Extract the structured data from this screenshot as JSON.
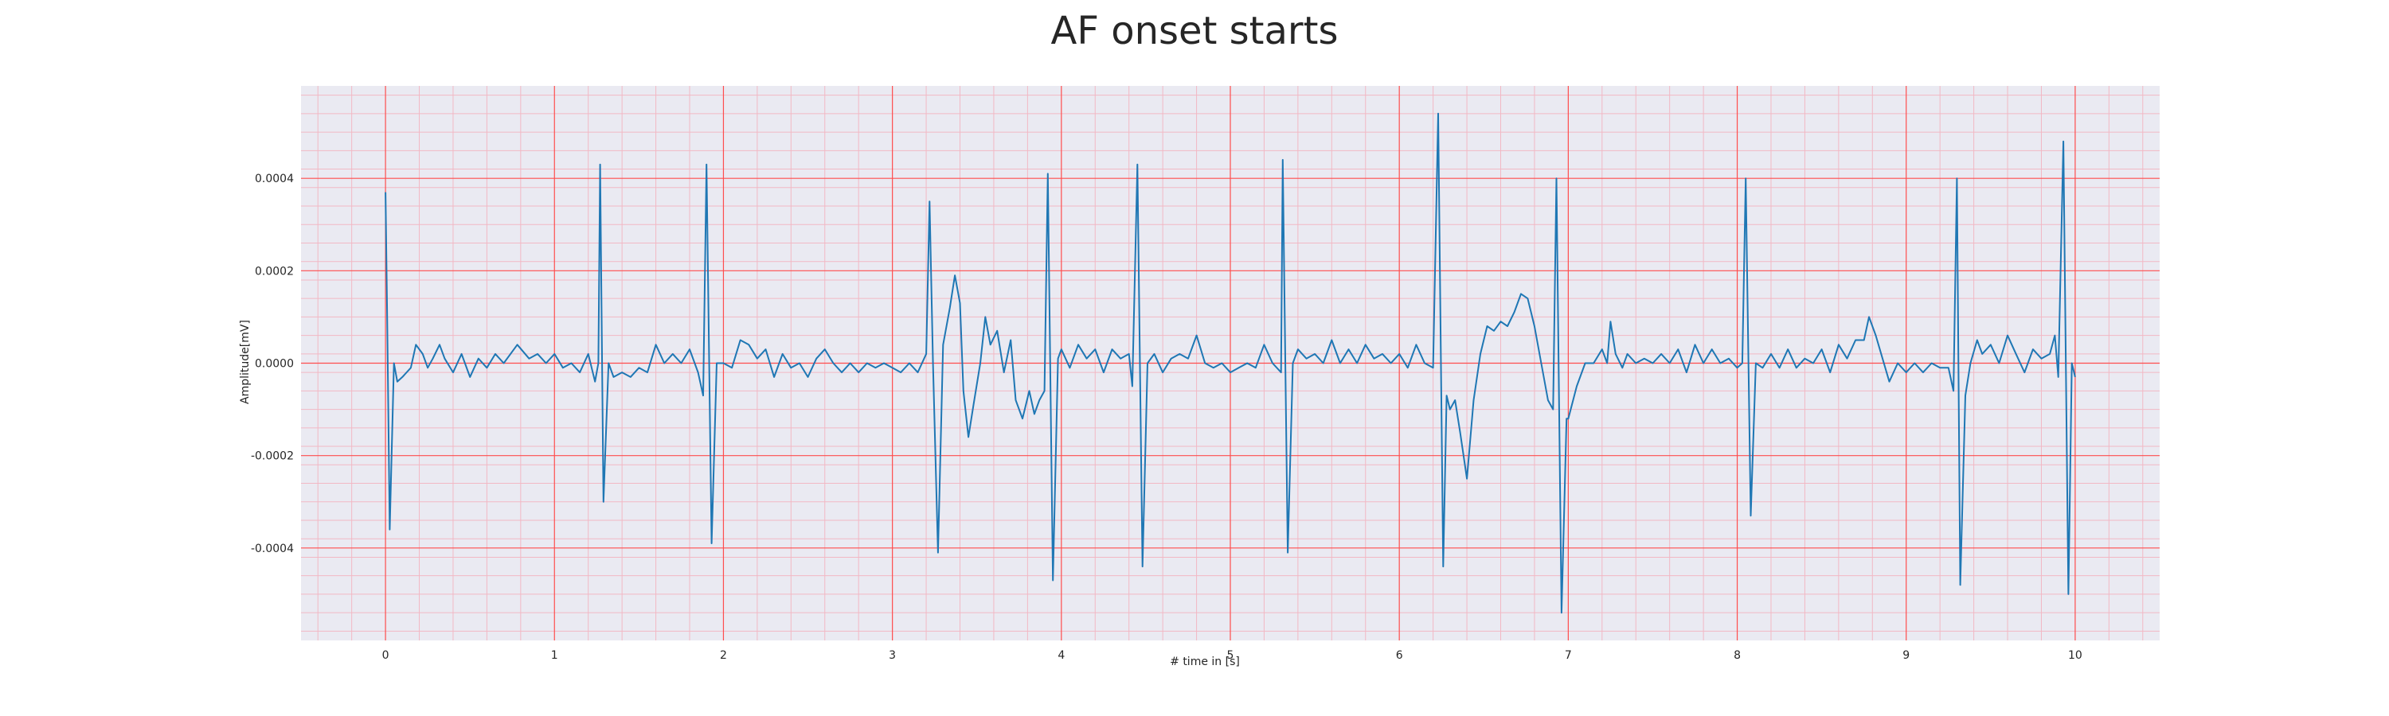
{
  "chart_data": {
    "type": "line",
    "title": "AF onset starts",
    "xlabel": "# time in [s]",
    "ylabel": "Amplitude[mV]",
    "xlim": [
      -0.5,
      10.5
    ],
    "ylim": [
      -0.0006,
      0.0006
    ],
    "x_ticks": [
      0,
      1,
      2,
      3,
      4,
      5,
      6,
      7,
      8,
      9,
      10
    ],
    "x_tick_labels": [
      "0",
      "1",
      "2",
      "3",
      "4",
      "5",
      "6",
      "7",
      "8",
      "9",
      "10"
    ],
    "y_ticks": [
      -0.0004,
      -0.0002,
      0.0,
      0.0002,
      0.0004
    ],
    "y_tick_labels": [
      "-0.0004",
      "-0.0002",
      "0.0000",
      "0.0002",
      "0.0004"
    ],
    "grid": true,
    "minor_grid": true,
    "colors": {
      "plot_background": "#eaeaf2",
      "major_grid": "#ff4d4d",
      "minor_grid": "#f2b8c4",
      "line": "#1f77b4"
    },
    "series": [
      {
        "values": [
          [
            0.0,
            0.00037
          ],
          [
            0.01,
            0.0001
          ],
          [
            0.025,
            -0.00036
          ],
          [
            0.05,
            0.0
          ],
          [
            0.07,
            -4e-05
          ],
          [
            0.1,
            -3e-05
          ],
          [
            0.15,
            -1e-05
          ],
          [
            0.18,
            4e-05
          ],
          [
            0.22,
            2e-05
          ],
          [
            0.25,
            -1e-05
          ],
          [
            0.28,
            1e-05
          ],
          [
            0.32,
            4e-05
          ],
          [
            0.35,
            1e-05
          ],
          [
            0.4,
            -2e-05
          ],
          [
            0.45,
            2e-05
          ],
          [
            0.5,
            -3e-05
          ],
          [
            0.55,
            1e-05
          ],
          [
            0.6,
            -1e-05
          ],
          [
            0.65,
            2e-05
          ],
          [
            0.7,
            0.0
          ],
          [
            0.78,
            4e-05
          ],
          [
            0.85,
            1e-05
          ],
          [
            0.9,
            2e-05
          ],
          [
            0.95,
            0.0
          ],
          [
            1.0,
            2e-05
          ],
          [
            1.05,
            -1e-05
          ],
          [
            1.1,
            0.0
          ],
          [
            1.15,
            -2e-05
          ],
          [
            1.2,
            2e-05
          ],
          [
            1.24,
            -4e-05
          ],
          [
            1.26,
            0.0
          ],
          [
            1.27,
            0.00043
          ],
          [
            1.29,
            -0.0003
          ],
          [
            1.32,
            0.0
          ],
          [
            1.35,
            -3e-05
          ],
          [
            1.4,
            -2e-05
          ],
          [
            1.45,
            -3e-05
          ],
          [
            1.5,
            -1e-05
          ],
          [
            1.55,
            -2e-05
          ],
          [
            1.6,
            4e-05
          ],
          [
            1.65,
            0.0
          ],
          [
            1.7,
            2e-05
          ],
          [
            1.75,
            0.0
          ],
          [
            1.8,
            3e-05
          ],
          [
            1.85,
            -2e-05
          ],
          [
            1.88,
            -7e-05
          ],
          [
            1.9,
            0.00043
          ],
          [
            1.93,
            -0.00039
          ],
          [
            1.96,
            0.0
          ],
          [
            2.0,
            0.0
          ],
          [
            2.05,
            -1e-05
          ],
          [
            2.1,
            5e-05
          ],
          [
            2.15,
            4e-05
          ],
          [
            2.2,
            1e-05
          ],
          [
            2.25,
            3e-05
          ],
          [
            2.3,
            -3e-05
          ],
          [
            2.35,
            2e-05
          ],
          [
            2.4,
            -1e-05
          ],
          [
            2.45,
            0.0
          ],
          [
            2.5,
            -3e-05
          ],
          [
            2.55,
            1e-05
          ],
          [
            2.6,
            3e-05
          ],
          [
            2.65,
            0.0
          ],
          [
            2.7,
            -2e-05
          ],
          [
            2.75,
            0.0
          ],
          [
            2.8,
            -2e-05
          ],
          [
            2.85,
            0.0
          ],
          [
            2.9,
            -1e-05
          ],
          [
            2.95,
            0.0
          ],
          [
            3.0,
            -1e-05
          ],
          [
            3.05,
            -2e-05
          ],
          [
            3.1,
            0.0
          ],
          [
            3.15,
            -2e-05
          ],
          [
            3.2,
            2e-05
          ],
          [
            3.22,
            0.00035
          ],
          [
            3.24,
            0.0
          ],
          [
            3.27,
            -0.00041
          ],
          [
            3.3,
            4e-05
          ],
          [
            3.34,
            0.00012
          ],
          [
            3.37,
            0.00019
          ],
          [
            3.4,
            0.00013
          ],
          [
            3.42,
            -6e-05
          ],
          [
            3.45,
            -0.00016
          ],
          [
            3.48,
            -9e-05
          ],
          [
            3.52,
            0.0
          ],
          [
            3.55,
            0.0001
          ],
          [
            3.58,
            4e-05
          ],
          [
            3.62,
            7e-05
          ],
          [
            3.66,
            -2e-05
          ],
          [
            3.7,
            5e-05
          ],
          [
            3.73,
            -8e-05
          ],
          [
            3.77,
            -0.00012
          ],
          [
            3.81,
            -6e-05
          ],
          [
            3.84,
            -0.00011
          ],
          [
            3.87,
            -8e-05
          ],
          [
            3.9,
            -6e-05
          ],
          [
            3.92,
            0.00041
          ],
          [
            3.95,
            -0.00047
          ],
          [
            3.98,
            1e-05
          ],
          [
            4.0,
            3e-05
          ],
          [
            4.05,
            -1e-05
          ],
          [
            4.1,
            4e-05
          ],
          [
            4.15,
            1e-05
          ],
          [
            4.2,
            3e-05
          ],
          [
            4.25,
            -2e-05
          ],
          [
            4.3,
            3e-05
          ],
          [
            4.35,
            1e-05
          ],
          [
            4.4,
            2e-05
          ],
          [
            4.42,
            -5e-05
          ],
          [
            4.45,
            0.00043
          ],
          [
            4.48,
            -0.00044
          ],
          [
            4.51,
            0.0
          ],
          [
            4.55,
            2e-05
          ],
          [
            4.6,
            -2e-05
          ],
          [
            4.65,
            1e-05
          ],
          [
            4.7,
            2e-05
          ],
          [
            4.75,
            1e-05
          ],
          [
            4.8,
            6e-05
          ],
          [
            4.85,
            0.0
          ],
          [
            4.9,
            -1e-05
          ],
          [
            4.95,
            0.0
          ],
          [
            5.0,
            -2e-05
          ],
          [
            5.05,
            -1e-05
          ],
          [
            5.1,
            0.0
          ],
          [
            5.15,
            -1e-05
          ],
          [
            5.2,
            4e-05
          ],
          [
            5.25,
            0.0
          ],
          [
            5.3,
            -2e-05
          ],
          [
            5.31,
            0.00044
          ],
          [
            5.34,
            -0.00041
          ],
          [
            5.37,
            0.0
          ],
          [
            5.4,
            3e-05
          ],
          [
            5.45,
            1e-05
          ],
          [
            5.5,
            2e-05
          ],
          [
            5.55,
            0.0
          ],
          [
            5.6,
            5e-05
          ],
          [
            5.65,
            0.0
          ],
          [
            5.7,
            3e-05
          ],
          [
            5.75,
            0.0
          ],
          [
            5.8,
            4e-05
          ],
          [
            5.85,
            1e-05
          ],
          [
            5.9,
            2e-05
          ],
          [
            5.95,
            0.0
          ],
          [
            6.0,
            2e-05
          ],
          [
            6.05,
            -1e-05
          ],
          [
            6.1,
            4e-05
          ],
          [
            6.15,
            0.0
          ],
          [
            6.2,
            -1e-05
          ],
          [
            6.23,
            0.00054
          ],
          [
            6.26,
            -0.00044
          ],
          [
            6.28,
            -7e-05
          ],
          [
            6.3,
            -0.0001
          ],
          [
            6.33,
            -8e-05
          ],
          [
            6.36,
            -0.00015
          ],
          [
            6.4,
            -0.00025
          ],
          [
            6.44,
            -8e-05
          ],
          [
            6.48,
            2e-05
          ],
          [
            6.52,
            8e-05
          ],
          [
            6.56,
            7e-05
          ],
          [
            6.6,
            9e-05
          ],
          [
            6.64,
            8e-05
          ],
          [
            6.68,
            0.00011
          ],
          [
            6.72,
            0.00015
          ],
          [
            6.76,
            0.00014
          ],
          [
            6.8,
            8e-05
          ],
          [
            6.84,
            0.0
          ],
          [
            6.88,
            -8e-05
          ],
          [
            6.91,
            -0.0001
          ],
          [
            6.93,
            0.0004
          ],
          [
            6.96,
            -0.00054
          ],
          [
            6.99,
            -0.00012
          ],
          [
            7.0,
            -0.00012
          ],
          [
            7.05,
            -5e-05
          ],
          [
            7.1,
            0.0
          ],
          [
            7.15,
            0.0
          ],
          [
            7.2,
            3e-05
          ],
          [
            7.23,
            0.0
          ],
          [
            7.25,
            9e-05
          ],
          [
            7.28,
            2e-05
          ],
          [
            7.32,
            -1e-05
          ],
          [
            7.35,
            2e-05
          ],
          [
            7.4,
            0.0
          ],
          [
            7.45,
            1e-05
          ],
          [
            7.5,
            0.0
          ],
          [
            7.55,
            2e-05
          ],
          [
            7.6,
            0.0
          ],
          [
            7.65,
            3e-05
          ],
          [
            7.7,
            -2e-05
          ],
          [
            7.75,
            4e-05
          ],
          [
            7.8,
            0.0
          ],
          [
            7.85,
            3e-05
          ],
          [
            7.9,
            0.0
          ],
          [
            7.95,
            1e-05
          ],
          [
            8.0,
            -1e-05
          ],
          [
            8.03,
            0.0
          ],
          [
            8.05,
            0.0004
          ],
          [
            8.08,
            -0.00033
          ],
          [
            8.11,
            0.0
          ],
          [
            8.15,
            -1e-05
          ],
          [
            8.2,
            2e-05
          ],
          [
            8.25,
            -1e-05
          ],
          [
            8.3,
            3e-05
          ],
          [
            8.35,
            -1e-05
          ],
          [
            8.4,
            1e-05
          ],
          [
            8.45,
            0.0
          ],
          [
            8.5,
            3e-05
          ],
          [
            8.55,
            -2e-05
          ],
          [
            8.6,
            4e-05
          ],
          [
            8.65,
            1e-05
          ],
          [
            8.7,
            5e-05
          ],
          [
            8.75,
            5e-05
          ],
          [
            8.78,
            0.0001
          ],
          [
            8.82,
            6e-05
          ],
          [
            8.86,
            1e-05
          ],
          [
            8.9,
            -4e-05
          ],
          [
            8.95,
            0.0
          ],
          [
            9.0,
            -2e-05
          ],
          [
            9.05,
            0.0
          ],
          [
            9.1,
            -2e-05
          ],
          [
            9.15,
            0.0
          ],
          [
            9.2,
            -1e-05
          ],
          [
            9.25,
            -1e-05
          ],
          [
            9.28,
            -6e-05
          ],
          [
            9.3,
            0.0004
          ],
          [
            9.32,
            -0.00048
          ],
          [
            9.35,
            -7e-05
          ],
          [
            9.38,
            0.0
          ],
          [
            9.42,
            5e-05
          ],
          [
            9.45,
            2e-05
          ],
          [
            9.5,
            4e-05
          ],
          [
            9.55,
            0.0
          ],
          [
            9.6,
            6e-05
          ],
          [
            9.65,
            2e-05
          ],
          [
            9.7,
            -2e-05
          ],
          [
            9.75,
            3e-05
          ],
          [
            9.8,
            1e-05
          ],
          [
            9.85,
            2e-05
          ],
          [
            9.88,
            6e-05
          ],
          [
            9.9,
            -3e-05
          ],
          [
            9.93,
            0.00048
          ],
          [
            9.96,
            -0.0005
          ],
          [
            9.98,
            0.0
          ],
          [
            10.0,
            -3e-05
          ]
        ]
      }
    ]
  }
}
